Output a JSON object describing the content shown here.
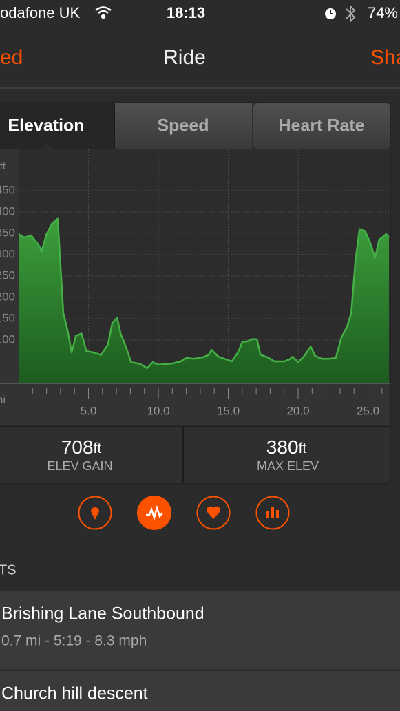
{
  "status_bar": {
    "carrier": "odafone UK",
    "time": "18:13",
    "battery": "74%"
  },
  "nav": {
    "left": "ed",
    "title": "Ride",
    "right": "Sha"
  },
  "tabs": [
    "Elevation",
    "Speed",
    "Heart Rate"
  ],
  "chart_data": {
    "type": "area",
    "y_label": "ft",
    "x_label": "mi",
    "x": [
      0,
      0.4,
      0.9,
      1.4,
      1.65,
      2.0,
      2.4,
      2.8,
      3.2,
      3.5,
      3.8,
      4.1,
      4.5,
      4.85,
      5.35,
      5.9,
      6.4,
      6.7,
      7.05,
      7.3,
      7.7,
      8.05,
      8.55,
      8.8,
      9.2,
      9.6,
      10.0,
      11.0,
      11.6,
      12.0,
      12.5,
      13.2,
      13.6,
      13.8,
      14.3,
      15.25,
      15.7,
      16.0,
      16.4,
      16.7,
      17.05,
      17.3,
      17.9,
      18.3,
      19.0,
      19.4,
      19.6,
      20.0,
      20.4,
      20.9,
      21.2,
      21.7,
      22.2,
      22.7,
      23.1,
      23.5,
      23.8,
      24.1,
      24.4,
      24.8,
      25.2,
      25.5,
      25.8,
      26.3,
      26.5
    ],
    "series": [
      {
        "color": "#45b045",
        "values": [
          348,
          340,
          345,
          324,
          308,
          348,
          373,
          384,
          163,
          123,
          71,
          110,
          115,
          74,
          71,
          65,
          90,
          139,
          152,
          115,
          82,
          48,
          45,
          42,
          34,
          48,
          42,
          45,
          50,
          58,
          56,
          60,
          65,
          77,
          61,
          50,
          71,
          95,
          97,
          102,
          102,
          66,
          58,
          50,
          50,
          55,
          61,
          48,
          61,
          85,
          63,
          56,
          56,
          58,
          106,
          131,
          163,
          284,
          360,
          355,
          324,
          292,
          335,
          348,
          340
        ]
      }
    ],
    "xlim": [
      0,
      26.6
    ],
    "ylim": [
      0,
      540
    ],
    "xticks": [
      {
        "value": 5,
        "label": "5.0"
      },
      {
        "value": 10,
        "label": "10.0"
      },
      {
        "value": 15,
        "label": "15.0"
      },
      {
        "value": 20,
        "label": "20.0"
      },
      {
        "value": 25,
        "label": "25.0"
      }
    ],
    "minor_xticks": [
      1,
      2,
      3,
      4,
      6,
      7,
      8,
      9,
      11,
      12,
      13,
      14,
      16,
      17,
      18,
      19,
      21,
      22,
      23,
      24,
      26
    ],
    "yticks": [
      100,
      150,
      200,
      250,
      300,
      350,
      400,
      450
    ],
    "grid": true
  },
  "stats": [
    {
      "value": 708,
      "unit": "ft",
      "label": "ELEV GAIN"
    },
    {
      "value": 380,
      "unit": "ft",
      "label": "MAX ELEV"
    }
  ],
  "section_title": "TS",
  "segments": [
    {
      "name": "Brishing Lane Southbound",
      "details": "0.7 mi - 5:19 - 8.3 mph"
    },
    {
      "name": "Church hill descent"
    }
  ]
}
